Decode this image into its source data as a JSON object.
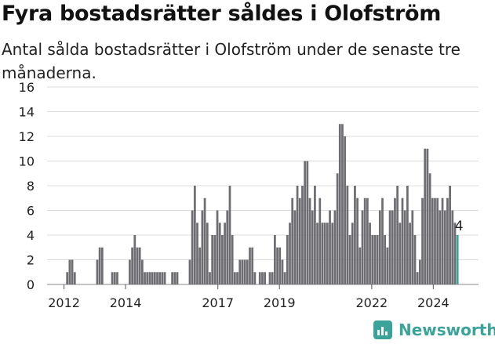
{
  "title": "Fyra bostadsrätter såldes i Olofström",
  "subtitle": "Antal sålda bostadsrätter i Olofström under de senaste tre månaderna.",
  "brand": "Newsworthy",
  "colors": {
    "bar": "#6e6d72",
    "highlight": "#3aa39a",
    "grid": "#dcdcdc",
    "text": "#222222",
    "brand": "#3aa39a"
  },
  "chart_data": {
    "type": "bar",
    "title": "Fyra bostadsrätter såldes i Olofström",
    "ylabel": "",
    "xlabel": "",
    "ylim": [
      0,
      16
    ],
    "yticks": [
      0,
      2,
      4,
      6,
      8,
      10,
      12,
      14,
      16
    ],
    "xtick_labels": [
      "2012",
      "2014",
      "2017",
      "2019",
      "2022",
      "2024"
    ],
    "xtick_positions": [
      2012.0,
      2014.0,
      2017.0,
      2019.0,
      2022.0,
      2024.0
    ],
    "x_start": 2011.5,
    "x_end": 2024.833,
    "bar_step_months": 1,
    "highlight_last": true,
    "last_label": "4",
    "values": [
      0,
      0,
      0,
      0,
      0,
      0,
      0,
      1,
      2,
      2,
      1,
      0,
      0,
      0,
      0,
      0,
      0,
      0,
      0,
      2,
      3,
      3,
      0,
      0,
      0,
      1,
      1,
      1,
      0,
      0,
      0,
      0,
      2,
      3,
      4,
      3,
      3,
      2,
      1,
      1,
      1,
      1,
      1,
      1,
      1,
      1,
      1,
      0,
      0,
      1,
      1,
      1,
      0,
      0,
      0,
      0,
      2,
      6,
      8,
      5,
      3,
      6,
      7,
      5,
      1,
      4,
      4,
      6,
      5,
      4,
      5,
      6,
      8,
      4,
      1,
      1,
      2,
      2,
      2,
      2,
      3,
      3,
      1,
      0,
      1,
      1,
      1,
      0,
      1,
      1,
      4,
      3,
      3,
      2,
      1,
      4,
      5,
      7,
      6,
      8,
      7,
      8,
      10,
      10,
      7,
      6,
      8,
      5,
      7,
      5,
      5,
      5,
      6,
      5,
      6,
      9,
      13,
      13,
      12,
      8,
      4,
      5,
      8,
      7,
      3,
      6,
      7,
      7,
      5,
      4,
      4,
      4,
      6,
      7,
      4,
      3,
      6,
      6,
      7,
      8,
      5,
      7,
      6,
      8,
      5,
      6,
      4,
      1,
      2,
      7,
      11,
      11,
      9,
      7,
      7,
      7,
      6,
      7,
      6,
      7,
      8,
      6,
      5,
      4
    ]
  }
}
